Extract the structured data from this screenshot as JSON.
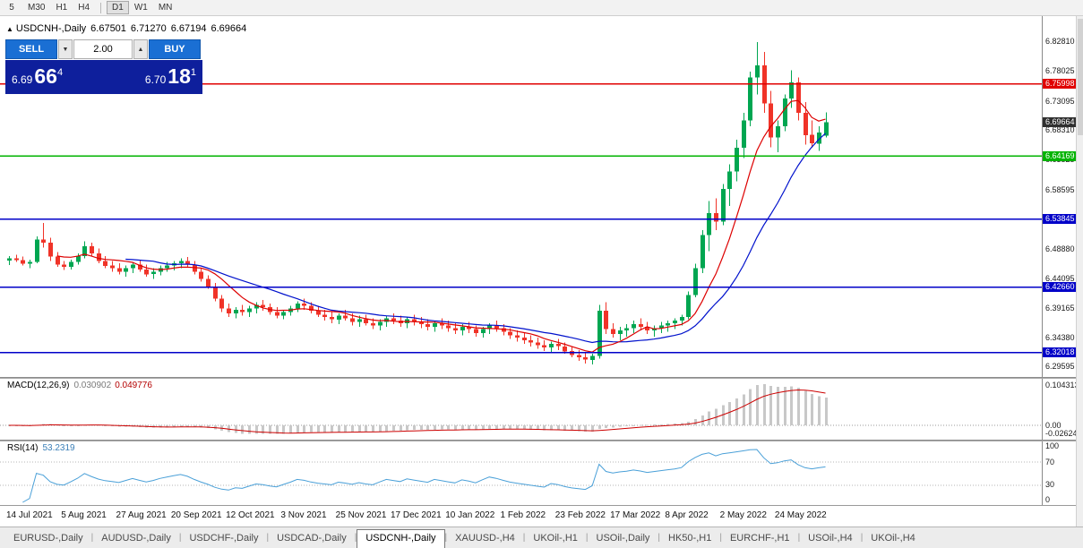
{
  "timeframe_toolbar": {
    "buttons": [
      {
        "label": "5"
      },
      {
        "label": "M30"
      },
      {
        "label": "H1"
      },
      {
        "label": "H4"
      },
      {
        "label": "D1",
        "active": true,
        "group_start": true
      },
      {
        "label": "W1"
      },
      {
        "label": "MN"
      }
    ]
  },
  "chart_header": {
    "collapse_icon": "▲",
    "symbol_title": "USDCNH-,Daily",
    "open": "6.67501",
    "high": "6.71270",
    "low": "6.67194",
    "close": "6.69664"
  },
  "trade_panel": {
    "sell_label": "SELL",
    "buy_label": "BUY",
    "volume": "2.00",
    "sell_price": {
      "base": "6.69",
      "big": "66",
      "sup": "4"
    },
    "buy_price": {
      "base": "6.70",
      "big": "18",
      "sup": "1"
    }
  },
  "macd_panel": {
    "title": "MACD(12,26,9)",
    "value_main": "0.030902",
    "value_signal": "0.049776",
    "axis_labels": [
      "0.104313",
      "0.00",
      "-0.026248"
    ]
  },
  "rsi_panel": {
    "title": "RSI(14)",
    "value": "53.2319",
    "axis_labels": [
      "100",
      "70",
      "30",
      "0"
    ],
    "levels": [
      70,
      30
    ]
  },
  "tab_bar": {
    "tabs": [
      {
        "label": "EURUSD-,Daily"
      },
      {
        "label": "AUDUSD-,Daily"
      },
      {
        "label": "USDCHF-,Daily"
      },
      {
        "label": "USDCAD-,Daily"
      },
      {
        "label": "USDCNH-,Daily",
        "active": true
      },
      {
        "label": "XAUUSD-,H4"
      },
      {
        "label": "UKOil-,H1"
      },
      {
        "label": "USOil-,Daily"
      },
      {
        "label": "HK50-,H1"
      },
      {
        "label": "EURCHF-,H1"
      },
      {
        "label": "USOil-,H4"
      },
      {
        "label": "UKOil-,H4"
      }
    ]
  },
  "colors": {
    "candle_up": "#00a651",
    "candle_down": "#f03328",
    "ma_fast": "#dd0000",
    "ma_slow": "#0011cc",
    "macd_hist": "#c8c8c8",
    "macd_signal": "#cc0000",
    "rsi_line": "#4aa0d8",
    "current_price_bg": "#2f2f2f",
    "buy_sell_button": "#1a6fd4",
    "trade_panel_bg": "#0e1f9c"
  },
  "chart_data": {
    "type": "candlestick",
    "symbol": "USDCNH-",
    "timeframe": "Daily",
    "title": "USDCNH-,Daily 6.67501 6.71270 6.67194 6.69664",
    "ylim": [
      6.2798,
      6.8706
    ],
    "bars_per_label": 8,
    "x_labels": [
      "14 Jul 2021",
      "5 Aug 2021",
      "27 Aug 2021",
      "20 Sep 2021",
      "12 Oct 2021",
      "3 Nov 2021",
      "25 Nov 2021",
      "17 Dec 2021",
      "10 Jan 2022",
      "1 Feb 2022",
      "23 Feb 2022",
      "17 Mar 2022",
      "8 Apr 2022",
      "2 May 2022",
      "24 May 2022"
    ],
    "y_ticks": [
      "6.82810",
      "6.78025",
      "6.73095",
      "6.68310",
      "6.63525",
      "6.58595",
      "6.48880",
      "6.44095",
      "6.39165",
      "6.34380",
      "6.29595"
    ],
    "hlines": [
      {
        "price": 6.75998,
        "color": "#e00000",
        "label": "6.75998"
      },
      {
        "price": 6.64169,
        "color": "#00b300",
        "label": "6.64169"
      },
      {
        "price": 6.53845,
        "color": "#0000c8",
        "label": "6.53845"
      },
      {
        "price": 6.4266,
        "color": "#0000c8",
        "label": "6.42660"
      },
      {
        "price": 6.32018,
        "color": "#0000c8",
        "label": "6.32018"
      }
    ],
    "current_price": {
      "value": 6.69664,
      "label": "6.69664"
    },
    "ohlc_current": {
      "open": 6.67501,
      "high": 6.7127,
      "low": 6.67194,
      "close": 6.69664
    },
    "overlays": {
      "ma_fast_period": 8,
      "ma_slow_period": 18
    },
    "indicators": [
      {
        "type": "MACD",
        "params": [
          12,
          26,
          9
        ],
        "value_main": 0.030902,
        "value_signal": 0.049776
      },
      {
        "type": "RSI",
        "params": [
          14
        ],
        "value": 53.2319
      }
    ],
    "candles": [
      [
        6.47,
        6.478,
        6.463,
        6.474
      ],
      [
        6.474,
        6.48,
        6.468,
        6.471
      ],
      [
        6.471,
        6.477,
        6.462,
        6.465
      ],
      [
        6.465,
        6.472,
        6.458,
        6.468
      ],
      [
        6.468,
        6.51,
        6.466,
        6.505
      ],
      [
        6.505,
        6.532,
        6.492,
        6.5
      ],
      [
        6.5,
        6.508,
        6.47,
        6.477
      ],
      [
        6.477,
        6.484,
        6.46,
        6.464
      ],
      [
        6.464,
        6.47,
        6.455,
        6.46
      ],
      [
        6.46,
        6.472,
        6.456,
        6.468
      ],
      [
        6.468,
        6.482,
        6.464,
        6.478
      ],
      [
        6.478,
        6.502,
        6.474,
        6.494
      ],
      [
        6.494,
        6.5,
        6.478,
        6.482
      ],
      [
        6.482,
        6.49,
        6.466,
        6.47
      ],
      [
        6.47,
        6.478,
        6.458,
        6.462
      ],
      [
        6.462,
        6.47,
        6.452,
        6.458
      ],
      [
        6.458,
        6.466,
        6.448,
        6.452
      ],
      [
        6.452,
        6.462,
        6.444,
        6.458
      ],
      [
        6.458,
        6.468,
        6.45,
        6.464
      ],
      [
        6.464,
        6.472,
        6.452,
        6.456
      ],
      [
        6.456,
        6.464,
        6.444,
        6.448
      ],
      [
        6.448,
        6.458,
        6.44,
        6.452
      ],
      [
        6.452,
        6.462,
        6.446,
        6.458
      ],
      [
        6.458,
        6.468,
        6.452,
        6.462
      ],
      [
        6.462,
        6.47,
        6.454,
        6.466
      ],
      [
        6.466,
        6.474,
        6.458,
        6.47
      ],
      [
        6.47,
        6.476,
        6.46,
        6.464
      ],
      [
        6.464,
        6.47,
        6.448,
        6.452
      ],
      [
        6.452,
        6.458,
        6.436,
        6.44
      ],
      [
        6.44,
        6.446,
        6.424,
        6.428
      ],
      [
        6.428,
        6.434,
        6.404,
        6.408
      ],
      [
        6.408,
        6.414,
        6.386,
        6.392
      ],
      [
        6.392,
        6.4,
        6.378,
        6.384
      ],
      [
        6.384,
        6.394,
        6.376,
        6.39
      ],
      [
        6.39,
        6.398,
        6.38,
        6.386
      ],
      [
        6.386,
        6.396,
        6.378,
        6.392
      ],
      [
        6.392,
        6.402,
        6.384,
        6.398
      ],
      [
        6.398,
        6.406,
        6.388,
        6.394
      ],
      [
        6.394,
        6.4,
        6.382,
        6.386
      ],
      [
        6.386,
        6.394,
        6.376,
        6.38
      ],
      [
        6.38,
        6.39,
        6.374,
        6.386
      ],
      [
        6.386,
        6.396,
        6.38,
        6.392
      ],
      [
        6.392,
        6.404,
        6.386,
        6.4
      ],
      [
        6.4,
        6.408,
        6.39,
        6.396
      ],
      [
        6.396,
        6.402,
        6.384,
        6.388
      ],
      [
        6.388,
        6.396,
        6.378,
        6.382
      ],
      [
        6.382,
        6.39,
        6.372,
        6.378
      ],
      [
        6.378,
        6.386,
        6.368,
        6.374
      ],
      [
        6.374,
        6.384,
        6.366,
        6.38
      ],
      [
        6.38,
        6.39,
        6.372,
        6.376
      ],
      [
        6.376,
        6.384,
        6.364,
        6.37
      ],
      [
        6.37,
        6.38,
        6.362,
        6.374
      ],
      [
        6.374,
        6.382,
        6.364,
        6.368
      ],
      [
        6.368,
        6.376,
        6.358,
        6.364
      ],
      [
        6.364,
        6.374,
        6.356,
        6.37
      ],
      [
        6.37,
        6.38,
        6.362,
        6.376
      ],
      [
        6.376,
        6.384,
        6.366,
        6.372
      ],
      [
        6.372,
        6.38,
        6.362,
        6.368
      ],
      [
        6.368,
        6.378,
        6.36,
        6.374
      ],
      [
        6.374,
        6.382,
        6.364,
        6.37
      ],
      [
        6.37,
        6.378,
        6.36,
        6.366
      ],
      [
        6.366,
        6.374,
        6.356,
        6.362
      ],
      [
        6.362,
        6.372,
        6.354,
        6.368
      ],
      [
        6.368,
        6.376,
        6.358,
        6.364
      ],
      [
        6.364,
        6.372,
        6.354,
        6.36
      ],
      [
        6.36,
        6.368,
        6.35,
        6.356
      ],
      [
        6.356,
        6.366,
        6.348,
        6.362
      ],
      [
        6.362,
        6.37,
        6.352,
        6.358
      ],
      [
        6.358,
        6.364,
        6.346,
        6.352
      ],
      [
        6.352,
        6.362,
        6.344,
        6.358
      ],
      [
        6.358,
        6.368,
        6.35,
        6.364
      ],
      [
        6.364,
        6.372,
        6.354,
        6.36
      ],
      [
        6.36,
        6.366,
        6.348,
        6.354
      ],
      [
        6.354,
        6.36,
        6.342,
        6.348
      ],
      [
        6.348,
        6.356,
        6.338,
        6.344
      ],
      [
        6.344,
        6.352,
        6.334,
        6.34
      ],
      [
        6.34,
        6.348,
        6.33,
        6.336
      ],
      [
        6.336,
        6.344,
        6.326,
        6.332
      ],
      [
        6.332,
        6.34,
        6.322,
        6.328
      ],
      [
        6.328,
        6.338,
        6.32,
        6.334
      ],
      [
        6.334,
        6.342,
        6.324,
        6.33
      ],
      [
        6.33,
        6.336,
        6.318,
        6.322
      ],
      [
        6.322,
        6.33,
        6.312,
        6.316
      ],
      [
        6.316,
        6.324,
        6.306,
        6.312
      ],
      [
        6.312,
        6.32,
        6.302,
        6.308
      ],
      [
        6.308,
        6.318,
        6.3,
        6.314
      ],
      [
        6.314,
        6.398,
        6.31,
        6.388
      ],
      [
        6.388,
        6.402,
        6.35,
        6.358
      ],
      [
        6.358,
        6.368,
        6.344,
        6.35
      ],
      [
        6.35,
        6.362,
        6.34,
        6.356
      ],
      [
        6.356,
        6.366,
        6.346,
        6.36
      ],
      [
        6.36,
        6.372,
        6.352,
        6.366
      ],
      [
        6.366,
        6.376,
        6.356,
        6.362
      ],
      [
        6.362,
        6.37,
        6.35,
        6.356
      ],
      [
        6.356,
        6.364,
        6.346,
        6.36
      ],
      [
        6.36,
        6.37,
        6.352,
        6.364
      ],
      [
        6.364,
        6.372,
        6.354,
        6.368
      ],
      [
        6.368,
        6.376,
        6.358,
        6.372
      ],
      [
        6.372,
        6.382,
        6.364,
        6.378
      ],
      [
        6.378,
        6.42,
        6.374,
        6.414
      ],
      [
        6.414,
        6.465,
        6.41,
        6.458
      ],
      [
        6.458,
        6.52,
        6.45,
        6.512
      ],
      [
        6.512,
        6.568,
        6.486,
        6.548
      ],
      [
        6.548,
        6.572,
        6.52,
        6.534
      ],
      [
        6.534,
        6.596,
        6.528,
        6.588
      ],
      [
        6.588,
        6.628,
        6.56,
        6.616
      ],
      [
        6.616,
        6.668,
        6.6,
        6.655
      ],
      [
        6.655,
        6.712,
        6.638,
        6.7
      ],
      [
        6.7,
        6.78,
        6.69,
        6.77
      ],
      [
        6.77,
        6.828,
        6.742,
        6.79
      ],
      [
        6.79,
        6.812,
        6.712,
        6.728
      ],
      [
        6.728,
        6.748,
        6.656,
        6.672
      ],
      [
        6.672,
        6.7,
        6.648,
        6.69
      ],
      [
        6.69,
        6.742,
        6.682,
        6.736
      ],
      [
        6.736,
        6.782,
        6.72,
        6.762
      ],
      [
        6.762,
        6.77,
        6.7,
        6.712
      ],
      [
        6.712,
        6.73,
        6.66,
        6.676
      ],
      [
        6.676,
        6.7,
        6.655,
        6.662
      ],
      [
        6.662,
        6.69,
        6.65,
        6.68
      ],
      [
        6.67501,
        6.7127,
        6.67194,
        6.69664
      ]
    ]
  }
}
